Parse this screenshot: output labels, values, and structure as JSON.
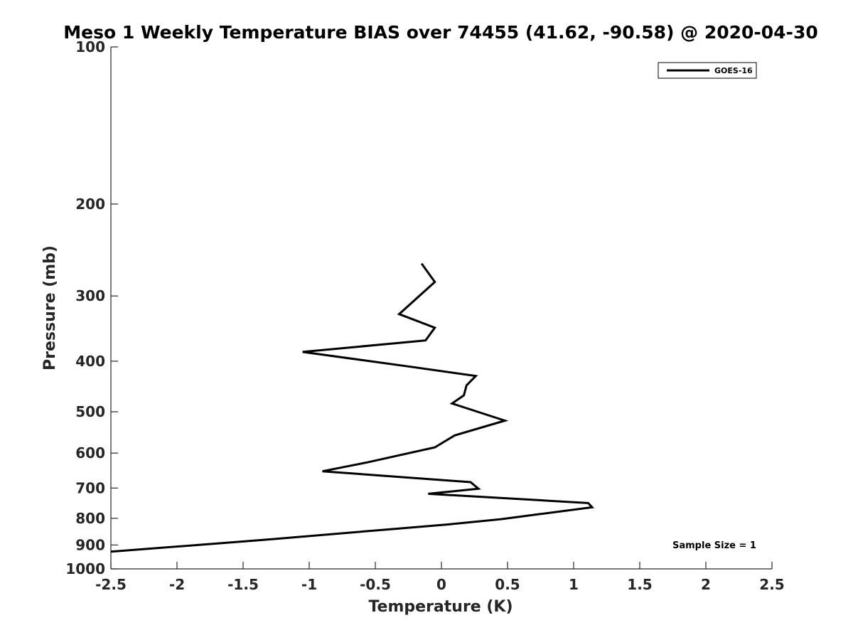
{
  "chart_data": {
    "type": "line",
    "title": "Meso 1 Weekly Temperature BIAS over 74455 (41.62, -90.58) @ 2020-04-30",
    "xlabel": "Temperature (K)",
    "ylabel": "Pressure (mb)",
    "xlim": [
      -2.5,
      2.5
    ],
    "ylim": [
      1000,
      100
    ],
    "y_scale": "log",
    "x_ticks": [
      "-2.5",
      "-2",
      "-1.5",
      "-1",
      "-0.5",
      "0",
      "0.5",
      "1",
      "1.5",
      "2",
      "2.5"
    ],
    "y_ticks": [
      "100",
      "200",
      "300",
      "400",
      "500",
      "600",
      "700",
      "800",
      "900",
      "1000"
    ],
    "grid": false,
    "legend_position": "top-right",
    "annotation": "Sample Size = 1",
    "series": [
      {
        "name": "GOES-16",
        "color": "#000000",
        "points": [
          {
            "x": -0.15,
            "y": 260
          },
          {
            "x": -0.05,
            "y": 282
          },
          {
            "x": -0.32,
            "y": 325
          },
          {
            "x": -0.05,
            "y": 345
          },
          {
            "x": -0.12,
            "y": 365
          },
          {
            "x": -1.05,
            "y": 384
          },
          {
            "x": -0.23,
            "y": 410
          },
          {
            "x": 0.26,
            "y": 427
          },
          {
            "x": 0.19,
            "y": 445
          },
          {
            "x": 0.17,
            "y": 465
          },
          {
            "x": 0.08,
            "y": 482
          },
          {
            "x": 0.48,
            "y": 520
          },
          {
            "x": 0.1,
            "y": 555
          },
          {
            "x": -0.05,
            "y": 585
          },
          {
            "x": -0.56,
            "y": 625
          },
          {
            "x": -0.9,
            "y": 650
          },
          {
            "x": 0.22,
            "y": 682
          },
          {
            "x": 0.28,
            "y": 702
          },
          {
            "x": -0.1,
            "y": 718
          },
          {
            "x": 1.11,
            "y": 748
          },
          {
            "x": 1.14,
            "y": 762
          },
          {
            "x": 0.75,
            "y": 785
          },
          {
            "x": 0.45,
            "y": 803
          },
          {
            "x": 0.05,
            "y": 822
          },
          {
            "x": -0.45,
            "y": 842
          },
          {
            "x": -1.35,
            "y": 880
          },
          {
            "x": -2.5,
            "y": 927
          }
        ]
      }
    ]
  }
}
